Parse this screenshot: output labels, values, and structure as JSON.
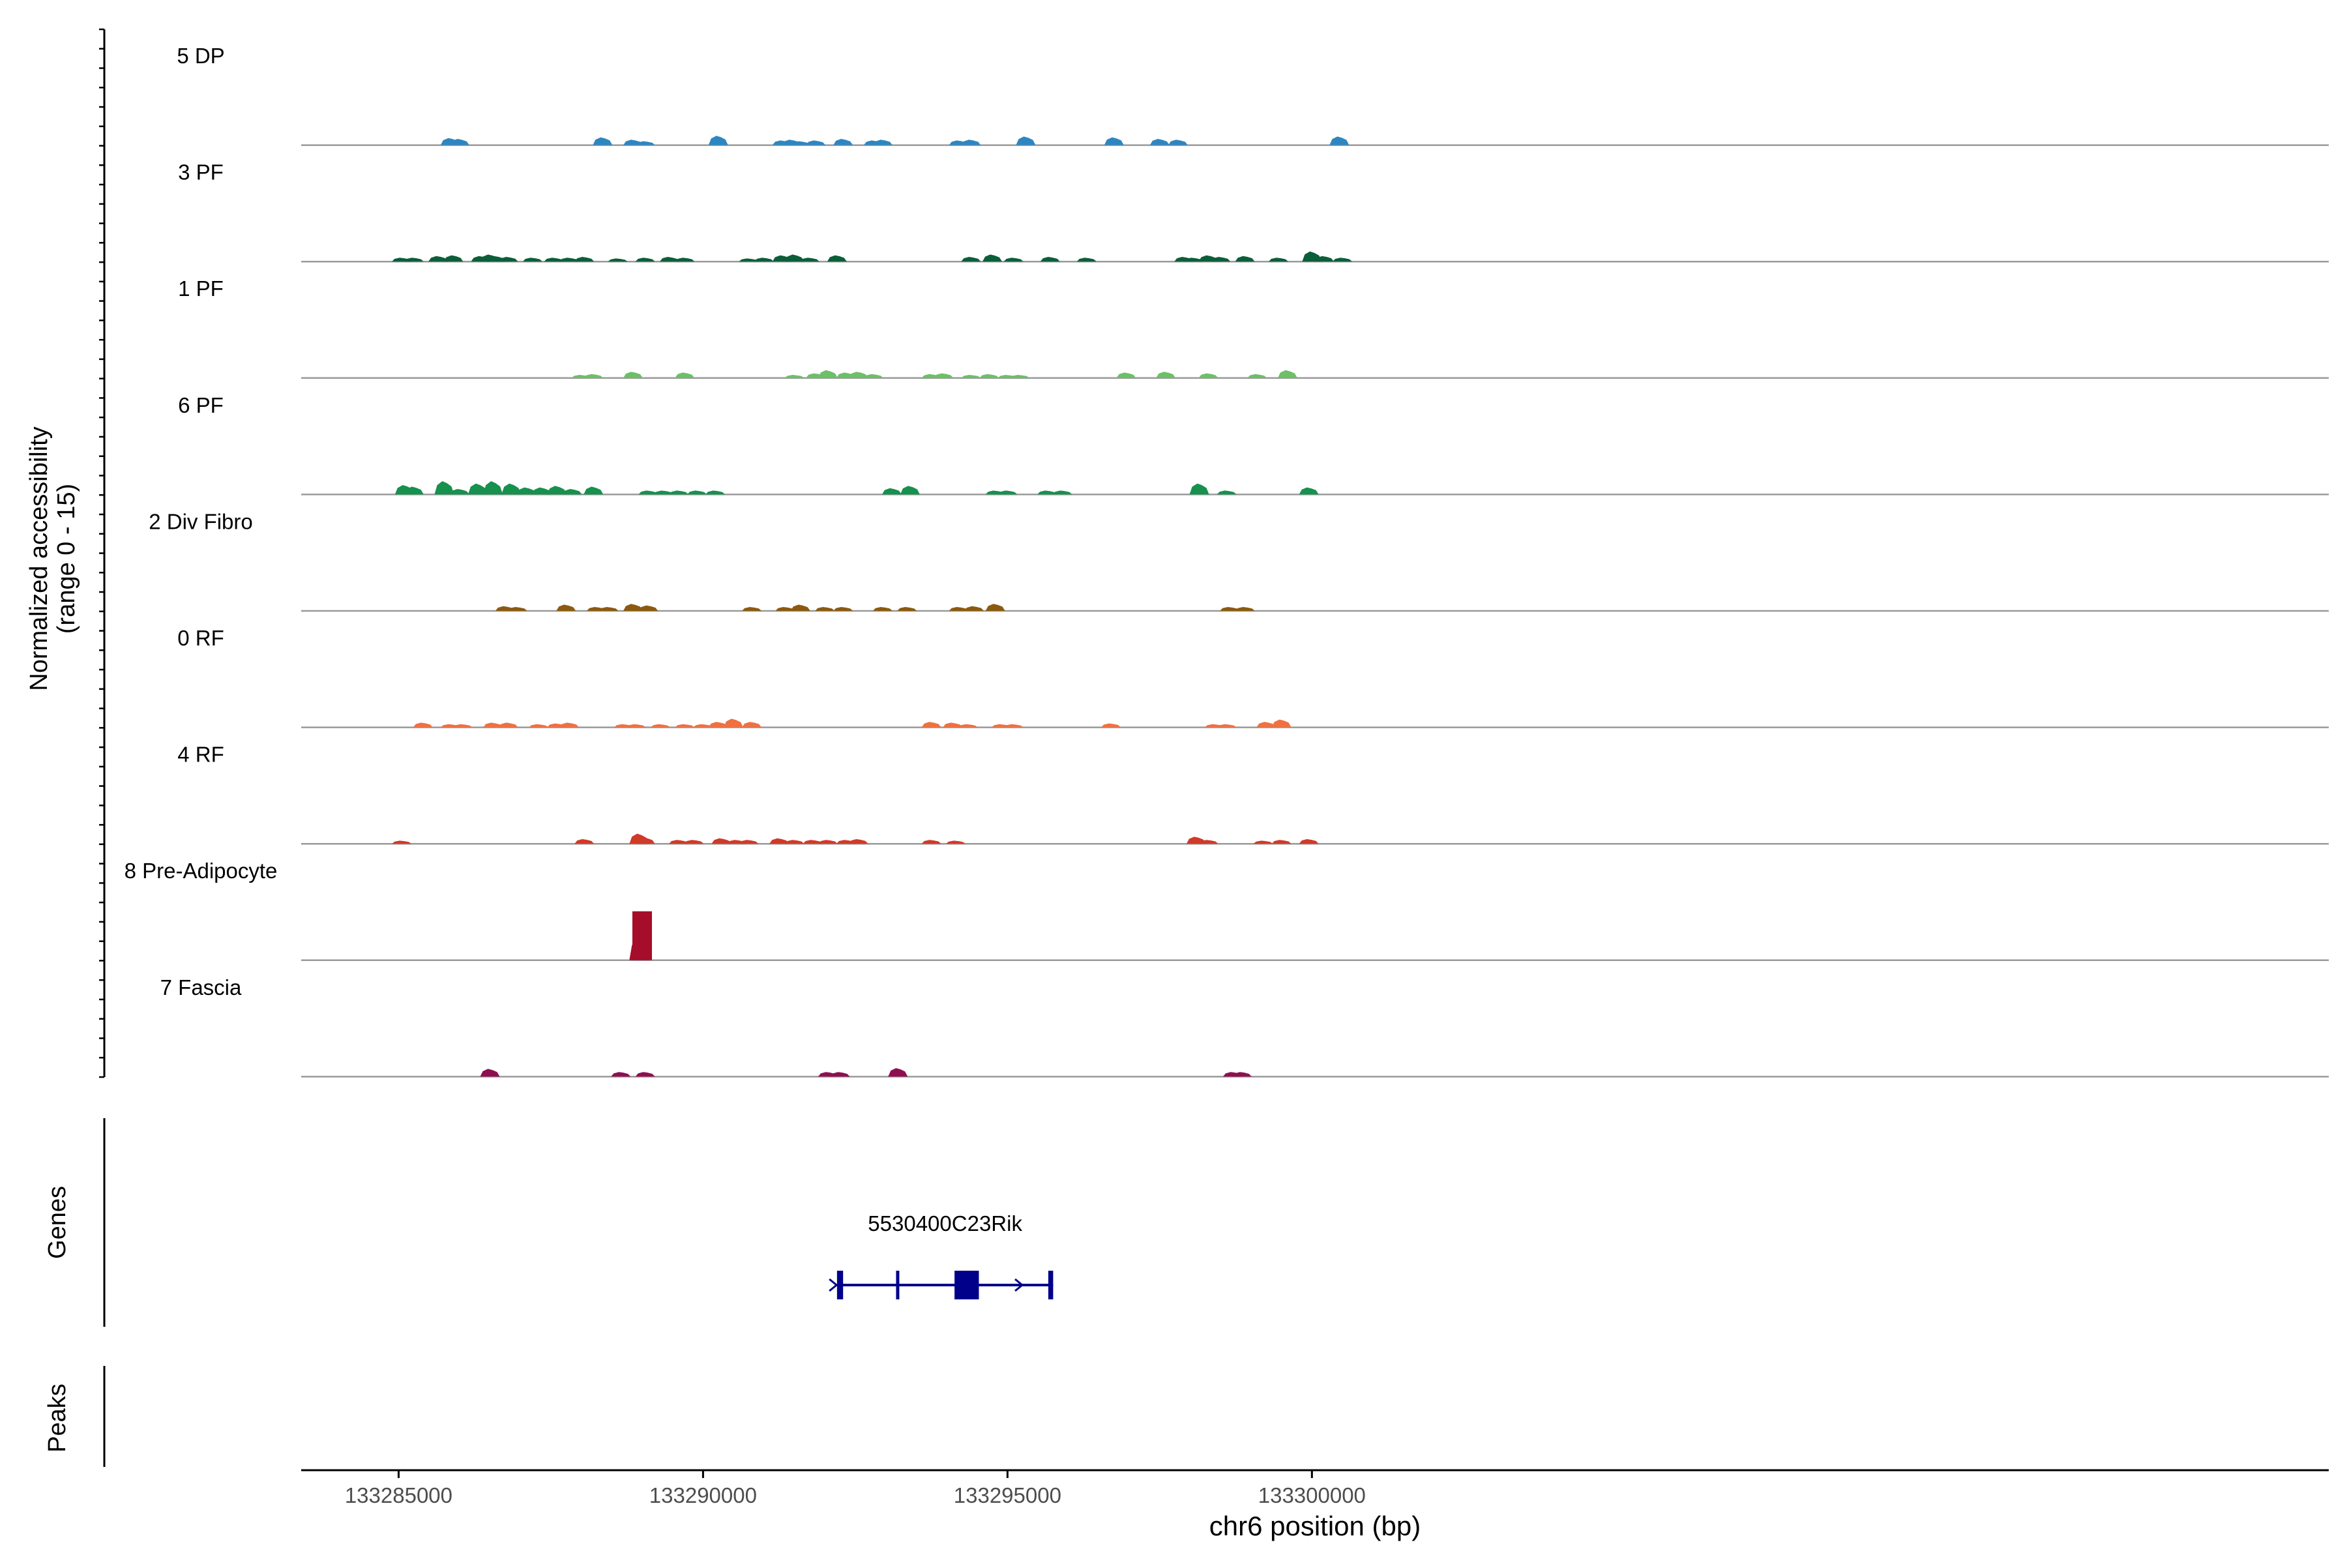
{
  "chart_data": {
    "type": "area",
    "ylabel_line1": "Normalized accessibility",
    "ylabel_line2": "(range 0 - 15)",
    "xlabel": "chr6 position (bp)",
    "xlim": [
      133283400,
      133316700
    ],
    "ylim": [
      0,
      15
    ],
    "x_ticks": [
      133285000,
      133290000,
      133295000,
      133300000
    ],
    "x_tick_labels": [
      "133285000",
      "133290000",
      "133295000",
      "133300000"
    ],
    "series": [
      {
        "name": "5 DP",
        "color": "#2E86C1",
        "peaks": [
          [
            133285.85,
            1.8
          ],
          [
            133286.0,
            1.6
          ],
          [
            133288.35,
            2.0
          ],
          [
            133288.85,
            1.4
          ],
          [
            133289.05,
            1.0
          ],
          [
            133290.25,
            2.4
          ],
          [
            133291.3,
            1.2
          ],
          [
            133291.45,
            1.4
          ],
          [
            133291.6,
            1.0
          ],
          [
            133291.85,
            1.2
          ],
          [
            133292.3,
            1.6
          ],
          [
            133292.8,
            1.2
          ],
          [
            133292.95,
            1.4
          ],
          [
            133294.2,
            1.2
          ],
          [
            133294.4,
            1.4
          ],
          [
            133295.3,
            2.2
          ],
          [
            133296.75,
            2.0
          ],
          [
            133297.5,
            1.6
          ],
          [
            133297.8,
            1.4
          ],
          [
            133300.45,
            2.2
          ]
        ]
      },
      {
        "name": "3 PF",
        "color": "#0B5E3A",
        "peaks": [
          [
            133285.05,
            1.0
          ],
          [
            133285.25,
            1.0
          ],
          [
            133285.65,
            1.4
          ],
          [
            133285.9,
            1.6
          ],
          [
            133286.35,
            1.4
          ],
          [
            133286.5,
            1.8
          ],
          [
            133286.6,
            1.4
          ],
          [
            133286.8,
            1.2
          ],
          [
            133287.2,
            1.0
          ],
          [
            133287.55,
            1.0
          ],
          [
            133287.8,
            1.0
          ],
          [
            133288.05,
            1.2
          ],
          [
            133288.6,
            0.8
          ],
          [
            133289.05,
            1.0
          ],
          [
            133289.45,
            1.2
          ],
          [
            133289.7,
            1.0
          ],
          [
            133290.75,
            0.8
          ],
          [
            133291.0,
            1.0
          ],
          [
            133291.3,
            1.6
          ],
          [
            133291.5,
            1.8
          ],
          [
            133291.75,
            1.0
          ],
          [
            133292.2,
            1.6
          ],
          [
            133294.4,
            1.2
          ],
          [
            133294.75,
            1.8
          ],
          [
            133295.1,
            1.0
          ],
          [
            133295.7,
            1.2
          ],
          [
            133296.3,
            1.0
          ],
          [
            133297.9,
            1.2
          ],
          [
            133298.05,
            1.0
          ],
          [
            133298.3,
            1.6
          ],
          [
            133298.5,
            1.2
          ],
          [
            133298.9,
            1.4
          ],
          [
            133299.45,
            1.0
          ],
          [
            133300.0,
            2.6
          ],
          [
            133300.2,
            1.4
          ],
          [
            133300.5,
            1.0
          ]
        ]
      },
      {
        "name": "1 PF",
        "color": "#6CC067",
        "peaks": [
          [
            133288.0,
            0.8
          ],
          [
            133288.2,
            1.0
          ],
          [
            133288.85,
            1.6
          ],
          [
            133289.7,
            1.4
          ],
          [
            133291.5,
            0.8
          ],
          [
            133291.85,
            1.2
          ],
          [
            133292.05,
            2.0
          ],
          [
            133292.35,
            1.4
          ],
          [
            133292.55,
            1.6
          ],
          [
            133292.8,
            1.0
          ],
          [
            133293.75,
            1.0
          ],
          [
            133293.95,
            1.2
          ],
          [
            133294.4,
            0.8
          ],
          [
            133294.7,
            1.0
          ],
          [
            133295.0,
            0.8
          ],
          [
            133295.2,
            0.8
          ],
          [
            133296.95,
            1.4
          ],
          [
            133297.6,
            1.6
          ],
          [
            133298.3,
            1.2
          ],
          [
            133299.1,
            1.0
          ],
          [
            133299.6,
            2.0
          ]
        ]
      },
      {
        "name": "6 PF",
        "color": "#16914E",
        "peaks": [
          [
            133285.1,
            2.4
          ],
          [
            133285.25,
            2.0
          ],
          [
            133285.75,
            3.4
          ],
          [
            133286.0,
            1.4
          ],
          [
            133286.3,
            2.8
          ],
          [
            133286.55,
            3.4
          ],
          [
            133286.85,
            2.8
          ],
          [
            133287.1,
            1.8
          ],
          [
            133287.35,
            1.8
          ],
          [
            133287.6,
            2.2
          ],
          [
            133287.85,
            1.4
          ],
          [
            133288.2,
            2.0
          ],
          [
            133289.1,
            1.0
          ],
          [
            133289.35,
            1.0
          ],
          [
            133289.6,
            1.0
          ],
          [
            133289.9,
            1.0
          ],
          [
            133290.2,
            1.0
          ],
          [
            133293.1,
            1.6
          ],
          [
            133293.4,
            2.2
          ],
          [
            133294.8,
            1.0
          ],
          [
            133295.0,
            1.0
          ],
          [
            133295.65,
            1.0
          ],
          [
            133295.9,
            1.0
          ],
          [
            133298.15,
            2.8
          ],
          [
            133298.6,
            1.0
          ],
          [
            133299.95,
            1.8
          ]
        ]
      },
      {
        "name": "2 Div Fibro",
        "color": "#8B5A0F",
        "peaks": [
          [
            133286.75,
            1.2
          ],
          [
            133286.95,
            1.0
          ],
          [
            133287.75,
            1.6
          ],
          [
            133288.25,
            1.0
          ],
          [
            133288.45,
            1.0
          ],
          [
            133288.85,
            1.8
          ],
          [
            133289.1,
            1.4
          ],
          [
            133290.8,
            1.0
          ],
          [
            133291.35,
            1.0
          ],
          [
            133291.6,
            1.6
          ],
          [
            133292.0,
            1.0
          ],
          [
            133292.3,
            1.0
          ],
          [
            133292.95,
            1.0
          ],
          [
            133293.35,
            1.0
          ],
          [
            133294.2,
            1.0
          ],
          [
            133294.45,
            1.2
          ],
          [
            133294.8,
            1.8
          ],
          [
            133298.65,
            1.0
          ],
          [
            133298.9,
            1.0
          ]
        ]
      },
      {
        "name": "0 RF",
        "color": "#F07040",
        "peaks": [
          [
            133285.4,
            1.2
          ],
          [
            133285.85,
            0.8
          ],
          [
            133286.05,
            0.8
          ],
          [
            133286.55,
            1.2
          ],
          [
            133286.8,
            1.2
          ],
          [
            133287.3,
            0.8
          ],
          [
            133287.6,
            1.0
          ],
          [
            133287.8,
            1.2
          ],
          [
            133288.7,
            0.8
          ],
          [
            133288.9,
            0.8
          ],
          [
            133289.3,
            0.8
          ],
          [
            133289.7,
            0.8
          ],
          [
            133290.0,
            0.8
          ],
          [
            133290.25,
            1.4
          ],
          [
            133290.5,
            2.2
          ],
          [
            133290.8,
            1.4
          ],
          [
            133293.75,
            1.4
          ],
          [
            133294.1,
            1.2
          ],
          [
            133294.35,
            0.8
          ],
          [
            133294.9,
            0.8
          ],
          [
            133295.1,
            0.8
          ],
          [
            133296.7,
            1.0
          ],
          [
            133298.4,
            0.8
          ],
          [
            133298.6,
            0.8
          ],
          [
            133299.25,
            1.4
          ],
          [
            133299.5,
            2.0
          ]
        ]
      },
      {
        "name": "4 RF",
        "color": "#D03A28",
        "peaks": [
          [
            133285.05,
            0.8
          ],
          [
            133288.05,
            1.2
          ],
          [
            133288.95,
            2.6
          ],
          [
            133289.05,
            1.6
          ],
          [
            133289.6,
            1.0
          ],
          [
            133289.85,
            1.0
          ],
          [
            133290.3,
            1.4
          ],
          [
            133290.55,
            1.0
          ],
          [
            133290.75,
            1.0
          ],
          [
            133291.25,
            1.4
          ],
          [
            133291.5,
            1.0
          ],
          [
            133291.8,
            1.0
          ],
          [
            133292.05,
            1.0
          ],
          [
            133292.35,
            1.0
          ],
          [
            133292.55,
            1.2
          ],
          [
            133293.75,
            1.0
          ],
          [
            133294.15,
            0.8
          ],
          [
            133298.1,
            1.8
          ],
          [
            133298.3,
            1.0
          ],
          [
            133299.2,
            0.8
          ],
          [
            133299.5,
            1.0
          ],
          [
            133299.95,
            1.2
          ]
        ]
      },
      {
        "name": "8 Pre-Adipocyte",
        "color": "#A50D2A",
        "peaks": [
          [
            133288.95,
            5.5
          ],
          [
            133289.0,
            12.5
          ]
        ]
      },
      {
        "name": "7 Fascia",
        "color": "#8E0F50",
        "peaks": [
          [
            133286.5,
            2.0
          ],
          [
            133288.65,
            1.2
          ],
          [
            133289.05,
            1.2
          ],
          [
            133292.05,
            1.2
          ],
          [
            133292.25,
            1.2
          ],
          [
            133293.2,
            2.2
          ],
          [
            133298.7,
            1.2
          ],
          [
            133298.85,
            1.2
          ]
        ]
      }
    ],
    "genes": [
      {
        "name": "5530400C23Rik",
        "color": "#00008B",
        "start": 133292.2,
        "end": 133295.75,
        "exons": [
          [
            133292.2,
            133292.3
          ],
          [
            133293.17,
            133293.21
          ],
          [
            133294.13,
            133294.53
          ],
          [
            133295.67,
            133295.75
          ]
        ],
        "strand_arrows": [
          133292.15,
          133295.2
        ]
      }
    ],
    "genes_track_label": "Genes",
    "peaks_track_label": "Peaks"
  }
}
